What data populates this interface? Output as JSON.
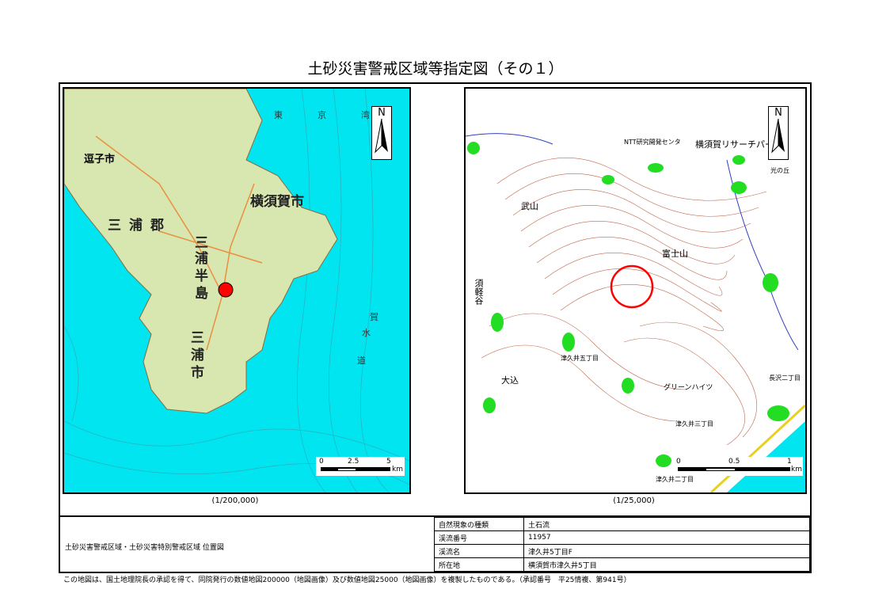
{
  "title": "土砂災害警戒区域等指定図（その１）",
  "left_map": {
    "scale_caption": "(1/200,000)",
    "scale_ticks": [
      "0",
      "2.5",
      "5"
    ],
    "scale_unit": "km",
    "north": "N",
    "labels": [
      "横須賀市",
      "三浦郡",
      "逗子市",
      "三",
      "浦",
      "半",
      "島",
      "三",
      "浦",
      "市",
      "東",
      "京",
      "湾",
      "賀",
      "水",
      "道"
    ],
    "marker_color": "#ff0000",
    "sea_color": "#00e5f0"
  },
  "right_map": {
    "scale_caption": "(1/25,000)",
    "scale_ticks": [
      "0",
      "0.5",
      "1"
    ],
    "scale_unit": "km",
    "north": "N",
    "labels": [
      "武山",
      "富士山",
      "横須賀リサーチパーク",
      "NTT研究開発センタ",
      "津久井五丁目",
      "津久井二丁目",
      "津久井三丁目",
      "グリーンハイツ",
      "大込",
      "須軽谷",
      "長沢二丁目",
      "光の丘"
    ],
    "circle_color": "#ff0000",
    "contour_color": "#b04020",
    "green_color": "#22dd22"
  },
  "info": {
    "description": "土砂災害警戒区域・土砂災害特別警戒区域 位置図",
    "rows": [
      {
        "label": "自然現象の種類",
        "value": "土石流"
      },
      {
        "label": "渓流番号",
        "value": "11957"
      },
      {
        "label": "渓流名",
        "value": "津久井5丁目F"
      },
      {
        "label": "所在地",
        "value": "横須賀市津久井5丁目"
      }
    ]
  },
  "footnote": "この地図は、国土地理院長の承認を得て、同院発行の数値地図200000（地図画像）及び数値地図25000（地図画像）を複製したものである。（承認番号　平25情複、第941号）"
}
